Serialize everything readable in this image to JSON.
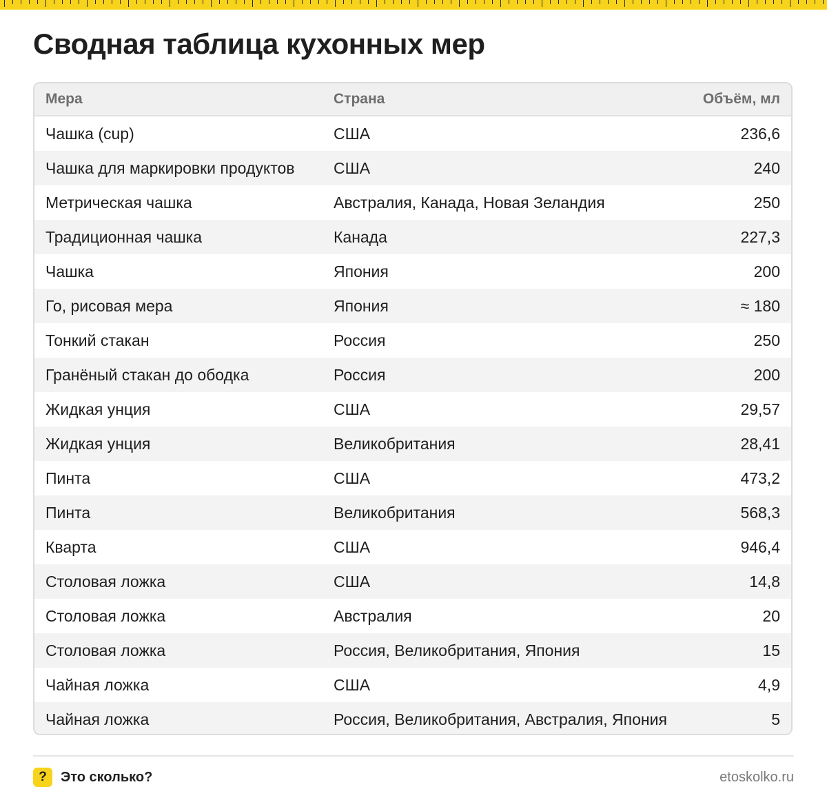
{
  "title": "Сводная таблица кухонных мер",
  "table": {
    "headers": {
      "measure": "Мера",
      "country": "Страна",
      "volume": "Объём, мл"
    },
    "rows": [
      {
        "measure": "Чашка (cup)",
        "country": "США",
        "volume": "236,6"
      },
      {
        "measure": "Чашка для маркировки продуктов",
        "country": "США",
        "volume": "240"
      },
      {
        "measure": "Метрическая чашка",
        "country": "Австралия, Канада, Новая Зеландия",
        "volume": "250"
      },
      {
        "measure": "Традиционная чашка",
        "country": "Канада",
        "volume": "227,3"
      },
      {
        "measure": "Чашка",
        "country": "Япония",
        "volume": "200"
      },
      {
        "measure": "Го, рисовая мера",
        "country": "Япония",
        "volume": "≈ 180"
      },
      {
        "measure": "Тонкий стакан",
        "country": "Россия",
        "volume": "250"
      },
      {
        "measure": "Гранёный стакан до ободка",
        "country": "Россия",
        "volume": "200"
      },
      {
        "measure": "Жидкая унция",
        "country": "США",
        "volume": "29,57"
      },
      {
        "measure": "Жидкая унция",
        "country": "Великобритания",
        "volume": "28,41"
      },
      {
        "measure": "Пинта",
        "country": "США",
        "volume": "473,2"
      },
      {
        "measure": "Пинта",
        "country": "Великобритания",
        "volume": "568,3"
      },
      {
        "measure": "Кварта",
        "country": "США",
        "volume": "946,4"
      },
      {
        "measure": "Столовая ложка",
        "country": "США",
        "volume": "14,8"
      },
      {
        "measure": "Столовая ложка",
        "country": "Австралия",
        "volume": "20"
      },
      {
        "measure": "Столовая ложка",
        "country": "Россия, Великобритания, Япония",
        "volume": "15"
      },
      {
        "measure": "Чайная ложка",
        "country": "США",
        "volume": "4,9"
      },
      {
        "measure": "Чайная ложка",
        "country": "Россия, Великобритания, Австралия, Япония",
        "volume": "5"
      }
    ]
  },
  "footer": {
    "brand_icon": "?",
    "brand_name": "Это сколько?",
    "site": "etoskolko.ru"
  },
  "colors": {
    "accent": "#f7d31c",
    "stripe": "#f3f3f3",
    "header_bg": "#f0f0f0"
  },
  "icons": {
    "top_strip": "ruler-strip",
    "brand": "question-badge-icon"
  }
}
